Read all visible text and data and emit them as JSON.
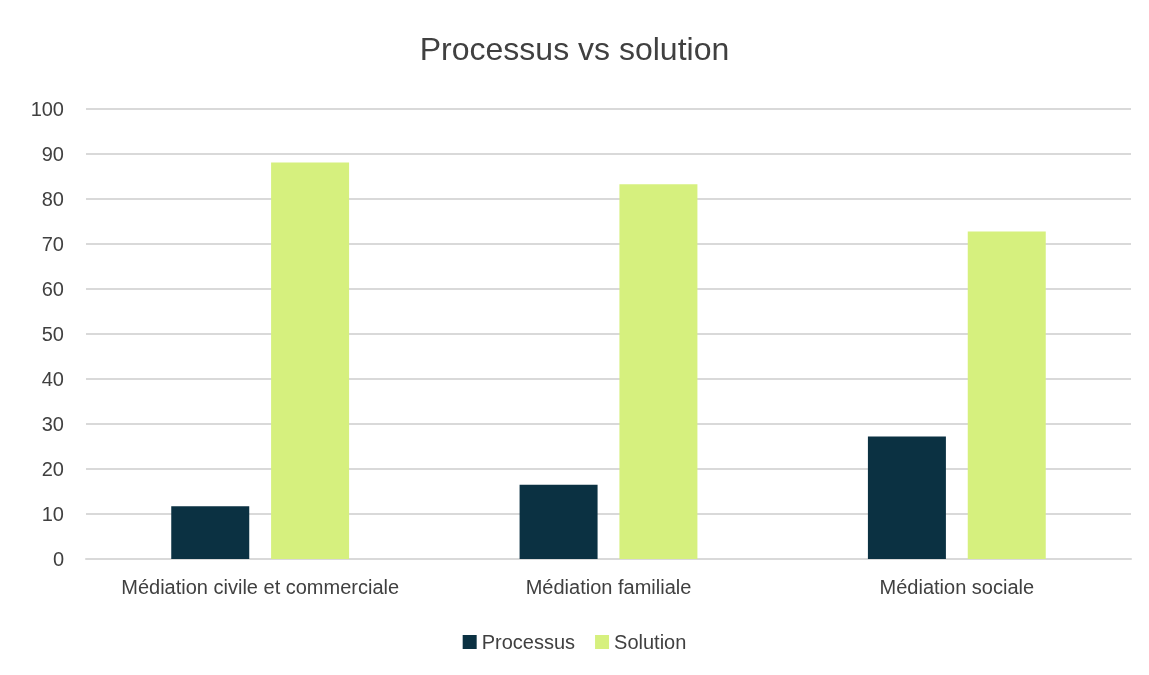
{
  "chart_data": {
    "type": "bar",
    "title": "Processus vs solution",
    "categories": [
      "Médiation civile et commerciale",
      "Médiation familiale",
      "Médiation sociale"
    ],
    "series": [
      {
        "name": "Processus",
        "color": "#0b3142",
        "values": [
          11.7,
          16.5,
          27.2
        ]
      },
      {
        "name": "Solution",
        "color": "#d6f07e",
        "values": [
          88.1,
          83.3,
          72.8
        ]
      }
    ],
    "ylim": [
      0,
      100
    ],
    "yticks": [
      0,
      10,
      20,
      30,
      40,
      50,
      60,
      70,
      80,
      90,
      100
    ],
    "grid": "y",
    "legend": "bottom"
  }
}
